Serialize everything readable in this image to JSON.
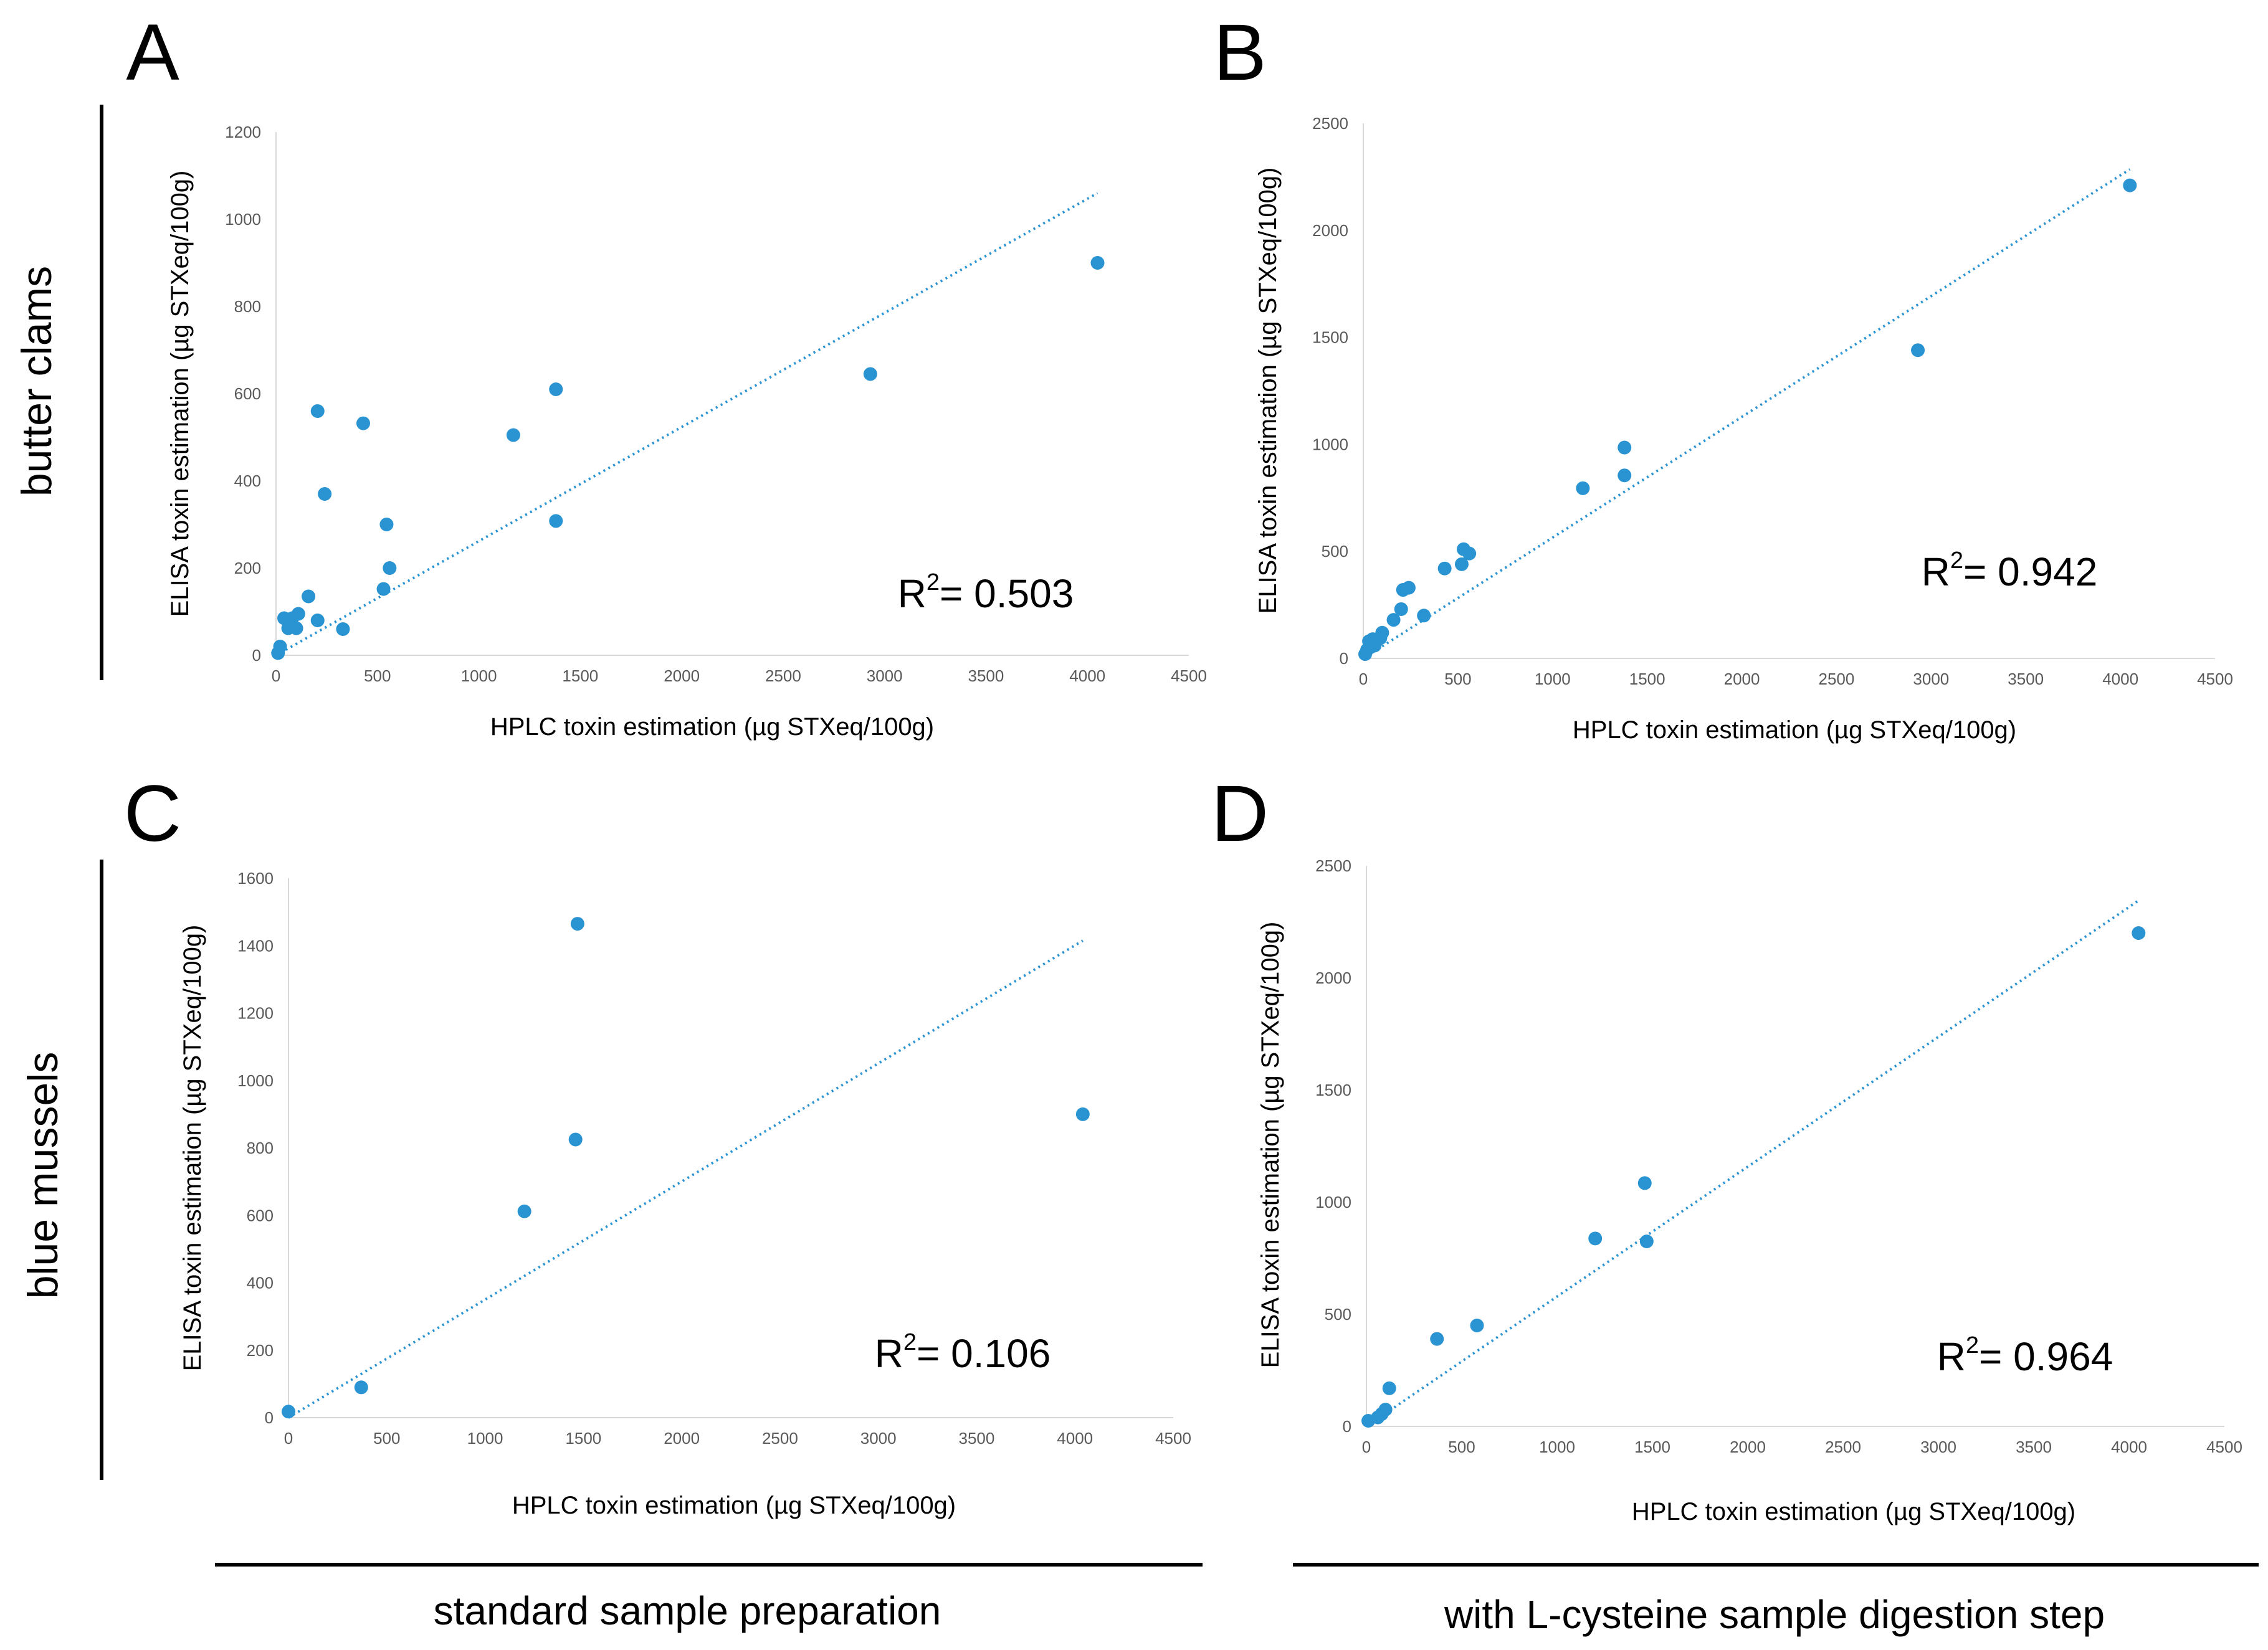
{
  "row_labels": [
    "butter clams",
    "blue mussels"
  ],
  "column_labels": [
    "standard sample preparation",
    "with L-cysteine sample digestion step"
  ],
  "colors": {
    "point": "#2a94d3",
    "trend": "#2a94d3",
    "axis": "#d9d9d9",
    "tick_text": "#595959"
  },
  "chart_data": [
    {
      "type": "scatter",
      "panel": "A",
      "xlabel": "HPLC toxin estimation (µg STXeq/100g)",
      "ylabel": "ELISA toxin estimation (µg STXeq/100g)",
      "xlim": [
        0,
        4500
      ],
      "ylim": [
        0,
        1200
      ],
      "xticks": [
        0,
        500,
        1000,
        1500,
        2000,
        2500,
        3000,
        3500,
        4000,
        4500
      ],
      "yticks": [
        0,
        200,
        400,
        600,
        800,
        1000,
        1200
      ],
      "points": [
        [
          4050,
          900
        ],
        [
          2930,
          645
        ],
        [
          1380,
          610
        ],
        [
          1380,
          308
        ],
        [
          1170,
          505
        ],
        [
          560,
          200
        ],
        [
          545,
          300
        ],
        [
          530,
          152
        ],
        [
          430,
          532
        ],
        [
          330,
          60
        ],
        [
          240,
          370
        ],
        [
          205,
          560
        ],
        [
          205,
          80
        ],
        [
          160,
          135
        ],
        [
          110,
          95
        ],
        [
          100,
          62
        ],
        [
          80,
          85
        ],
        [
          60,
          62
        ],
        [
          40,
          85
        ],
        [
          20,
          20
        ],
        [
          10,
          5
        ]
      ],
      "trendline": {
        "x": [
          0,
          4050
        ],
        "y": [
          0,
          1060
        ]
      },
      "r2_label": "R",
      "r2_sup": "2",
      "r2_value": "= 0.503"
    },
    {
      "type": "scatter",
      "panel": "B",
      "xlabel": "HPLC toxin estimation (µg STXeq/100g)",
      "ylabel": "ELISA toxin estimation (µg STXeq/100g)",
      "xlim": [
        0,
        4500
      ],
      "ylim": [
        0,
        2500
      ],
      "xticks": [
        0,
        500,
        1000,
        1500,
        2000,
        2500,
        3000,
        3500,
        4000,
        4500
      ],
      "yticks": [
        0,
        500,
        1000,
        1500,
        2000,
        2500
      ],
      "points": [
        [
          4050,
          2210
        ],
        [
          2930,
          1440
        ],
        [
          1380,
          985
        ],
        [
          1380,
          855
        ],
        [
          1160,
          795
        ],
        [
          560,
          490
        ],
        [
          530,
          510
        ],
        [
          520,
          440
        ],
        [
          430,
          420
        ],
        [
          320,
          200
        ],
        [
          240,
          330
        ],
        [
          210,
          320
        ],
        [
          200,
          230
        ],
        [
          160,
          180
        ],
        [
          100,
          120
        ],
        [
          90,
          95
        ],
        [
          60,
          60
        ],
        [
          50,
          90
        ],
        [
          30,
          80
        ],
        [
          20,
          40
        ],
        [
          10,
          20
        ]
      ],
      "trendline": {
        "x": [
          0,
          4050
        ],
        "y": [
          0,
          2285
        ]
      },
      "r2_label": "R",
      "r2_sup": "2",
      "r2_value": "= 0.942"
    },
    {
      "type": "scatter",
      "panel": "C",
      "xlabel": "HPLC toxin estimation (µg STXeq/100g)",
      "ylabel": "ELISA toxin estimation (µg STXeq/100g)",
      "xlim": [
        0,
        4500
      ],
      "ylim": [
        0,
        1600
      ],
      "xticks": [
        0,
        500,
        1000,
        1500,
        2000,
        2500,
        3000,
        3500,
        4000,
        4500
      ],
      "yticks": [
        0,
        200,
        400,
        600,
        800,
        1000,
        1200,
        1400,
        1600
      ],
      "points": [
        [
          4040,
          900
        ],
        [
          1470,
          1465
        ],
        [
          1460,
          825
        ],
        [
          1200,
          612
        ],
        [
          370,
          90
        ],
        [
          0,
          18
        ]
      ],
      "trendline": {
        "x": [
          0,
          4040
        ],
        "y": [
          0,
          1415
        ]
      },
      "r2_label": "R",
      "r2_sup": "2",
      "r2_value": "= 0.106"
    },
    {
      "type": "scatter",
      "panel": "D",
      "xlabel": "HPLC toxin estimation (µg STXeq/100g)",
      "ylabel": "ELISA toxin estimation (µg STXeq/100g)",
      "xlim": [
        0,
        4500
      ],
      "ylim": [
        0,
        2500
      ],
      "xticks": [
        0,
        500,
        1000,
        1500,
        2000,
        2500,
        3000,
        3500,
        4000,
        4500
      ],
      "yticks": [
        0,
        500,
        1000,
        1500,
        2000,
        2500
      ],
      "points": [
        [
          4050,
          2200
        ],
        [
          1460,
          1085
        ],
        [
          1470,
          825
        ],
        [
          1200,
          838
        ],
        [
          580,
          450
        ],
        [
          370,
          390
        ],
        [
          120,
          170
        ],
        [
          100,
          75
        ],
        [
          80,
          55
        ],
        [
          60,
          40
        ],
        [
          10,
          25
        ]
      ],
      "trendline": {
        "x": [
          0,
          4050
        ],
        "y": [
          0,
          2345
        ]
      },
      "r2_label": "R",
      "r2_sup": "2",
      "r2_value": "= 0.964"
    }
  ]
}
